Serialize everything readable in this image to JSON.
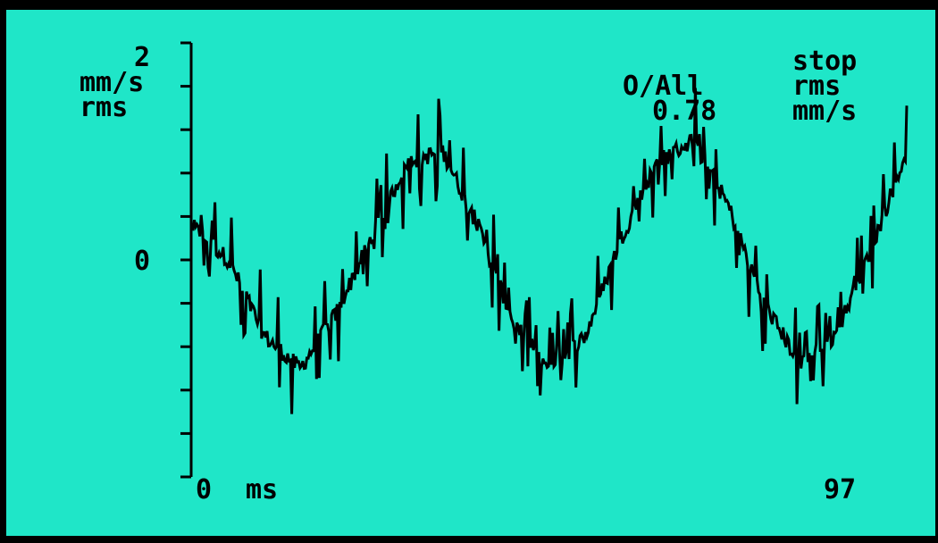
{
  "display": {
    "unit_line1": "mm/s",
    "unit_line2": "rms",
    "status": "stop",
    "measure_label": "O/All",
    "measure_type": "rms",
    "overall_value": "0.78",
    "overall_unit": "mm/s",
    "frame_counter": "97"
  },
  "colors": {
    "screen_bg": "#1fe6c8",
    "trace": "#000000",
    "bezel": "#000000"
  },
  "chart_data": {
    "type": "line",
    "title": "",
    "xlabel": "ms",
    "ylabel": "mm/s rms",
    "ylim": [
      -2,
      2
    ],
    "y_ticks": [
      2,
      0
    ],
    "y_minor_ticks": [
      -2,
      -1.6,
      -1.2,
      -0.8,
      -0.4,
      0,
      0.4,
      0.8,
      1.2,
      1.6,
      2
    ],
    "x_tick_labels": [
      "0"
    ],
    "grid": false,
    "series": [
      {
        "x": [
          0,
          0.05,
          0.1,
          0.15,
          0.2,
          0.25,
          0.3,
          0.35,
          0.4,
          0.45,
          0.5,
          0.55,
          0.6,
          0.65,
          0.7,
          0.75,
          0.8,
          0.85,
          0.9,
          0.95,
          1
        ],
        "values": [
          0.3,
          0.0,
          -0.7,
          -1.0,
          -0.5,
          0.2,
          0.9,
          1.0,
          0.3,
          -0.6,
          -1.0,
          -0.7,
          0.2,
          0.9,
          1.1,
          0.5,
          -0.4,
          -0.95,
          -0.7,
          0.1,
          1.0
        ]
      }
    ]
  }
}
